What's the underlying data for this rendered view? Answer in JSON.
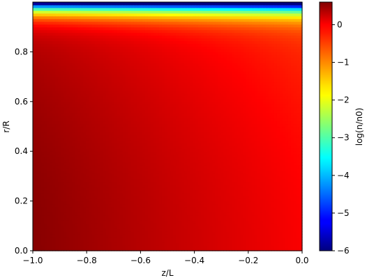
{
  "chart_data": {
    "type": "heatmap",
    "title": "",
    "xlabel": "z/L",
    "ylabel": "r/R",
    "xlim": [
      -1.0,
      0.0
    ],
    "ylim": [
      0.0,
      1.0
    ],
    "x_ticks": [
      {
        "value": -1.0,
        "label": "−1.0"
      },
      {
        "value": -0.8,
        "label": "−0.8"
      },
      {
        "value": -0.6,
        "label": "−0.6"
      },
      {
        "value": -0.4,
        "label": "−0.4"
      },
      {
        "value": -0.2,
        "label": "−0.2"
      },
      {
        "value": 0.0,
        "label": "0.0"
      }
    ],
    "y_ticks": [
      {
        "value": 0.0,
        "label": "0.0"
      },
      {
        "value": 0.2,
        "label": "0.2"
      },
      {
        "value": 0.4,
        "label": "0.4"
      },
      {
        "value": 0.6,
        "label": "0.6"
      },
      {
        "value": 0.8,
        "label": "0.8"
      }
    ],
    "colorbar": {
      "label": "log(n/n0)",
      "range": [
        -6.0,
        0.6
      ],
      "colormap": "jet",
      "ticks": [
        {
          "value": 0,
          "label": "0"
        },
        {
          "value": -1,
          "label": "−1"
        },
        {
          "value": -2,
          "label": "−2"
        },
        {
          "value": -3,
          "label": "−3"
        },
        {
          "value": -4,
          "label": "−4"
        },
        {
          "value": -5,
          "label": "−5"
        },
        {
          "value": -6,
          "label": "−6"
        }
      ]
    },
    "grid": false
  }
}
